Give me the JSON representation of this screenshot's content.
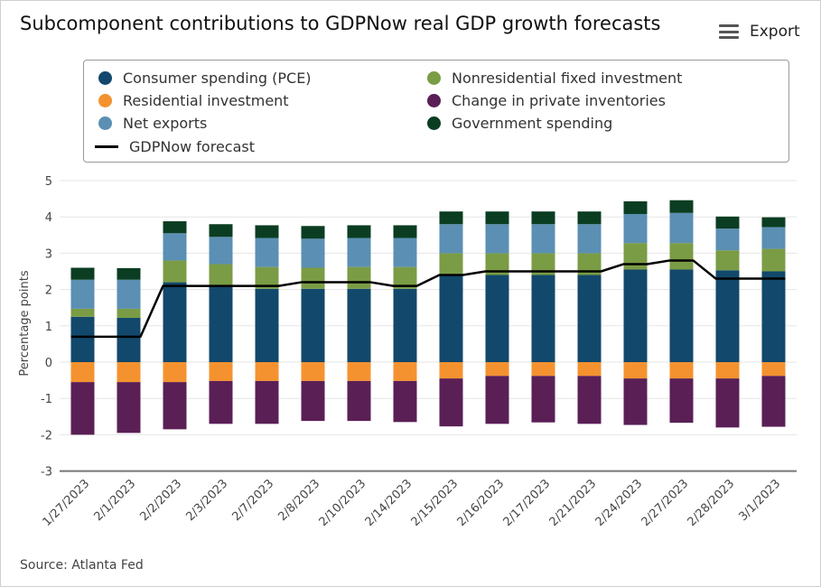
{
  "title": "Subcomponent contributions to GDPNow real GDP growth forecasts",
  "export_label": "Export",
  "source": "Source: Atlanta Fed",
  "chart_data": {
    "type": "bar",
    "stacked": true,
    "categories": [
      "1/27/2023",
      "2/1/2023",
      "2/2/2023",
      "2/3/2023",
      "2/7/2023",
      "2/8/2023",
      "2/10/2023",
      "2/14/2023",
      "2/15/2023",
      "2/16/2023",
      "2/17/2023",
      "2/21/2023",
      "2/24/2023",
      "2/27/2023",
      "2/28/2023",
      "3/1/2023"
    ],
    "ylabel": "Percentage points",
    "ylim": [
      -3,
      5
    ],
    "yticks": [
      5,
      4,
      3,
      2,
      1,
      0,
      -1,
      -2,
      -3
    ],
    "grid": true,
    "legend_position": "top",
    "series": [
      {
        "name": "Consumer spending (PCE)",
        "color": "#12486b",
        "kind": "bar",
        "values": [
          1.25,
          1.22,
          2.2,
          2.1,
          2.02,
          2.02,
          2.02,
          2.02,
          2.4,
          2.4,
          2.4,
          2.4,
          2.55,
          2.55,
          2.53,
          2.5
        ]
      },
      {
        "name": "Nonresidential fixed investment",
        "color": "#7a9c45",
        "kind": "bar",
        "values": [
          0.22,
          0.25,
          0.6,
          0.6,
          0.6,
          0.58,
          0.6,
          0.6,
          0.6,
          0.6,
          0.6,
          0.6,
          0.73,
          0.73,
          0.55,
          0.62
        ]
      },
      {
        "name": "Residential investment",
        "color": "#f4922f",
        "kind": "bar",
        "values": [
          -0.55,
          -0.55,
          -0.55,
          -0.52,
          -0.52,
          -0.52,
          -0.52,
          -0.52,
          -0.45,
          -0.38,
          -0.38,
          -0.38,
          -0.45,
          -0.45,
          -0.45,
          -0.38
        ]
      },
      {
        "name": "Change in private inventories",
        "color": "#5a1f55",
        "kind": "bar",
        "values": [
          -1.45,
          -1.4,
          -1.3,
          -1.18,
          -1.18,
          -1.1,
          -1.1,
          -1.13,
          -1.32,
          -1.32,
          -1.28,
          -1.32,
          -1.28,
          -1.22,
          -1.35,
          -1.4
        ]
      },
      {
        "name": "Net exports",
        "color": "#5b8fb3",
        "kind": "bar",
        "values": [
          0.8,
          0.8,
          0.75,
          0.75,
          0.8,
          0.8,
          0.8,
          0.8,
          0.8,
          0.8,
          0.8,
          0.8,
          0.8,
          0.83,
          0.6,
          0.6
        ]
      },
      {
        "name": "Government spending",
        "color": "#0b3d22",
        "kind": "bar",
        "values": [
          0.33,
          0.32,
          0.33,
          0.35,
          0.35,
          0.35,
          0.35,
          0.35,
          0.35,
          0.35,
          0.35,
          0.35,
          0.35,
          0.35,
          0.33,
          0.27
        ]
      },
      {
        "name": "GDPNow forecast",
        "color": "#000000",
        "kind": "line",
        "values": [
          0.7,
          0.7,
          2.1,
          2.1,
          2.1,
          2.2,
          2.2,
          2.1,
          2.4,
          2.5,
          2.5,
          2.5,
          2.7,
          2.8,
          2.3,
          2.3
        ]
      }
    ]
  }
}
